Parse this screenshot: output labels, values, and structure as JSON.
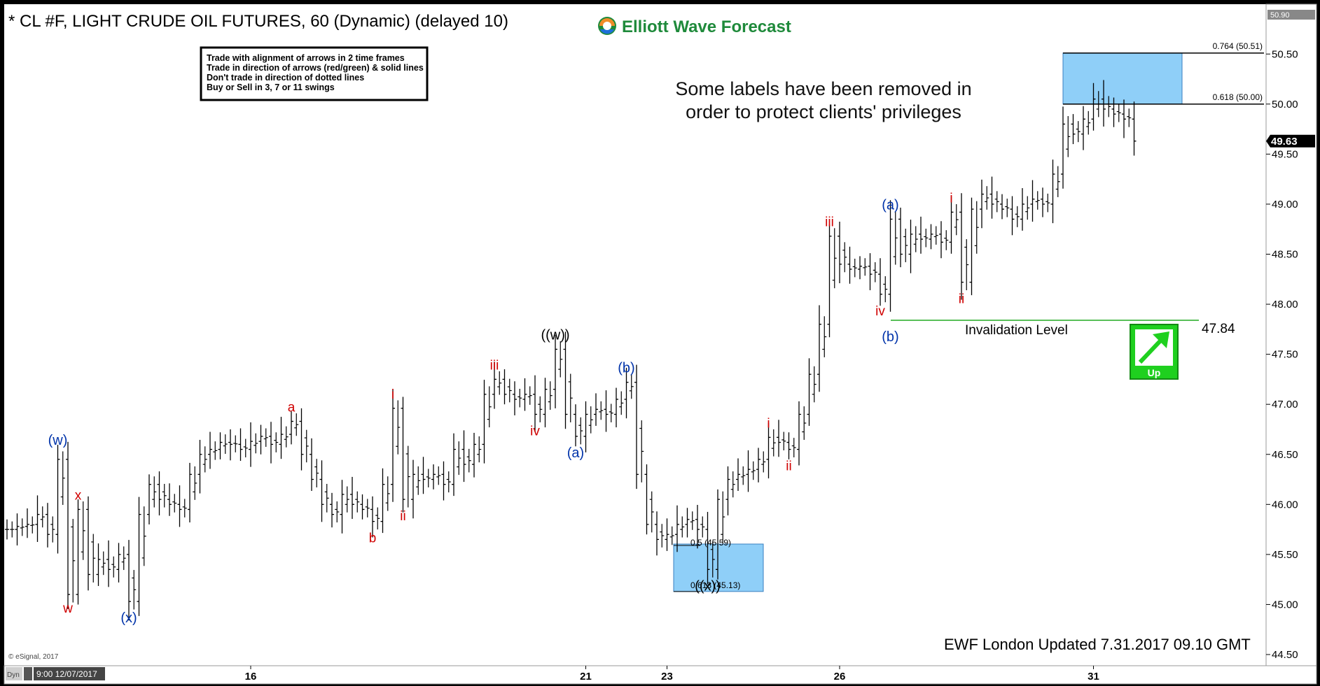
{
  "window": {
    "title": "* CL #F, LIGHT CRUDE OIL FUTURES, 60 (Dynamic) (delayed 10)",
    "brand": "Elliott Wave Forecast",
    "top_right_price": "50.90",
    "current_price": "49.63"
  },
  "rules": [
    "Trade with alignment of arrows in 2 time frames",
    "Trade in direction of arrows (red/green) & solid lines",
    "Don't trade in direction of dotted lines",
    "Buy or Sell in 3, 7 or 11 swings"
  ],
  "note": [
    "Some labels have been removed in",
    "order to protect clients' privileges"
  ],
  "invalidation": {
    "label": "Invalidation Level",
    "value": "47.84"
  },
  "signal": {
    "label": "Up",
    "color": "#1fd01f"
  },
  "footer": {
    "updated": "EWF London Updated 7.31.2017 09.10 GMT",
    "copyright": "© eSignal, 2017",
    "status_left": "Dyn",
    "status_time": "9:00 12/07/2017"
  },
  "fib_levels": {
    "top": [
      {
        "text": "0.764 (50.51)",
        "value": 50.51
      },
      {
        "text": "0.618 (50.00)",
        "value": 50.0
      }
    ],
    "bottom": [
      {
        "text": "0.5 (45.59)",
        "value": 45.59
      },
      {
        "text": "0.618 (45.13)",
        "value": 45.13
      }
    ]
  },
  "colors": {
    "red": "#d00000",
    "blue": "#0033aa",
    "zone": "#8fcff8",
    "line_green": "#22aa22"
  },
  "wave_labels": [
    {
      "text": "(w)",
      "color": "blue",
      "bar": 5,
      "price": 46.5,
      "pos": "above"
    },
    {
      "text": "w",
      "color": "red",
      "bar": 6,
      "price": 45.13,
      "pos": "below"
    },
    {
      "text": "x",
      "color": "red",
      "bar": 7,
      "price": 45.95,
      "pos": "above"
    },
    {
      "text": "(x)",
      "color": "blue",
      "bar": 12,
      "price": 45.03,
      "pos": "below"
    },
    {
      "text": "a",
      "color": "red",
      "bar": 28,
      "price": 46.83,
      "pos": "above"
    },
    {
      "text": "b",
      "color": "red",
      "bar": 36,
      "price": 45.83,
      "pos": "below"
    },
    {
      "text": "i",
      "color": "red",
      "bar": 38,
      "price": 46.96,
      "pos": "above"
    },
    {
      "text": "ii",
      "color": "red",
      "bar": 39,
      "price": 46.05,
      "pos": "below"
    },
    {
      "text": "iii",
      "color": "red",
      "bar": 48,
      "price": 47.25,
      "pos": "above"
    },
    {
      "text": "iv",
      "color": "red",
      "bar": 52,
      "price": 46.9,
      "pos": "below"
    },
    {
      "text": "((w))",
      "color": "black",
      "bar": 54,
      "price": 47.55,
      "pos": "above"
    },
    {
      "text": "(a)",
      "color": "blue",
      "bar": 56,
      "price": 46.68,
      "pos": "below"
    },
    {
      "text": "(b)",
      "color": "blue",
      "bar": 61,
      "price": 47.22,
      "pos": "above"
    },
    {
      "text": "((x))",
      "color": "black",
      "bar": 69,
      "price": 45.35,
      "pos": "below"
    },
    {
      "text": "i",
      "color": "red",
      "bar": 75,
      "price": 46.67,
      "pos": "above"
    },
    {
      "text": "ii",
      "color": "red",
      "bar": 77,
      "price": 46.55,
      "pos": "below"
    },
    {
      "text": "iii",
      "color": "red",
      "bar": 81,
      "price": 48.68,
      "pos": "above"
    },
    {
      "text": "iv",
      "color": "red",
      "bar": 86,
      "price": 48.1,
      "pos": "below"
    },
    {
      "text": "(a)",
      "color": "blue",
      "bar": 87,
      "price": 48.85,
      "pos": "above"
    },
    {
      "text": "(b)",
      "color": "blue",
      "bar": 87,
      "price": 47.84,
      "pos": "below"
    },
    {
      "text": "i",
      "color": "red",
      "bar": 93,
      "price": 48.92,
      "pos": "above"
    },
    {
      "text": "ii",
      "color": "red",
      "bar": 94,
      "price": 48.22,
      "pos": "below"
    }
  ],
  "chart_data": {
    "type": "ohlc",
    "title": "* CL #F, LIGHT CRUDE OIL FUTURES, 60 (Dynamic) (delayed 10)",
    "ylim": [
      44.5,
      50.9
    ],
    "yticks": [
      44.5,
      45.0,
      45.5,
      46.0,
      46.5,
      47.0,
      47.5,
      48.0,
      48.5,
      49.0,
      49.5,
      50.0,
      50.5
    ],
    "xticks": [
      {
        "label": "16",
        "bar": 24
      },
      {
        "label": "21",
        "bar": 57
      },
      {
        "label": "23",
        "bar": 65
      },
      {
        "label": "26",
        "bar": 82
      },
      {
        "label": "31",
        "bar": 107
      }
    ],
    "close": [
      45.75,
      45.78,
      45.8,
      45.9,
      45.7,
      46.45,
      45.1,
      45.95,
      45.3,
      45.45,
      45.35,
      45.5,
      45.03,
      45.9,
      46.2,
      46.05,
      46.0,
      45.95,
      46.3,
      46.5,
      46.55,
      46.62,
      46.6,
      46.55,
      46.63,
      46.68,
      46.6,
      46.7,
      46.83,
      46.5,
      46.25,
      46.0,
      45.9,
      46.1,
      46.0,
      45.95,
      45.83,
      46.2,
      46.96,
      46.05,
      46.3,
      46.25,
      46.3,
      46.2,
      46.55,
      46.4,
      46.6,
      47.1,
      47.25,
      47.1,
      47.05,
      47.1,
      46.9,
      47.15,
      47.55,
      46.9,
      46.68,
      46.9,
      46.95,
      46.9,
      47.05,
      47.22,
      46.3,
      45.8,
      45.65,
      45.7,
      45.8,
      45.85,
      45.75,
      45.35,
      46.05,
      46.25,
      46.3,
      46.35,
      46.45,
      46.67,
      46.62,
      46.55,
      46.9,
      47.3,
      47.8,
      48.68,
      48.4,
      48.35,
      48.38,
      48.3,
      48.1,
      48.85,
      48.5,
      48.7,
      48.65,
      48.7,
      48.62,
      48.92,
      48.22,
      48.95,
      49.1,
      49.0,
      48.95,
      48.85,
      49.0,
      49.05,
      49.0,
      49.3,
      49.8,
      49.7,
      49.85,
      50.05,
      49.95,
      49.9,
      49.85,
      49.63
    ]
  }
}
